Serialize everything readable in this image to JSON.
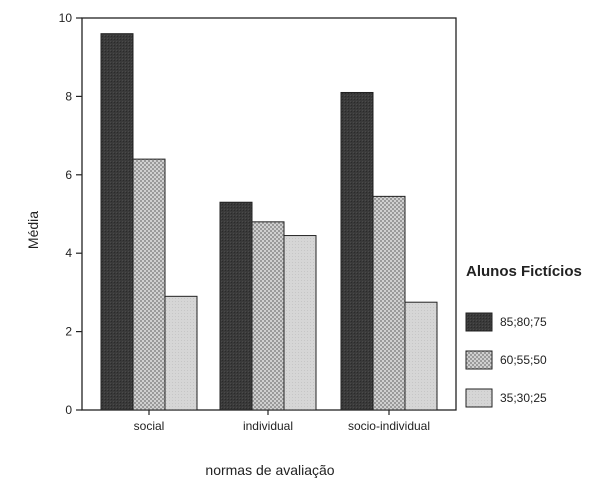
{
  "chart_data": {
    "type": "bar",
    "title": "",
    "xlabel": "normas de avaliação",
    "ylabel": "Média",
    "ylim": [
      0,
      10
    ],
    "yticks": [
      0,
      2,
      4,
      6,
      8,
      10
    ],
    "categories": [
      "social",
      "individual",
      "socio-individual"
    ],
    "series": [
      {
        "name": "85;80;75",
        "values": [
          9.6,
          5.3,
          8.1
        ],
        "color": "#3a3a3a",
        "pattern": "solid-dark"
      },
      {
        "name": "60;55;50",
        "values": [
          6.4,
          4.8,
          5.45
        ],
        "color": "#bdbdbd",
        "pattern": "checker"
      },
      {
        "name": "35;30;25",
        "values": [
          2.9,
          4.45,
          2.75
        ],
        "color": "#d6d6d6",
        "pattern": "solid-light"
      }
    ],
    "legend": {
      "title": "Alunos Fictícios",
      "position": "right"
    },
    "grid": false
  }
}
